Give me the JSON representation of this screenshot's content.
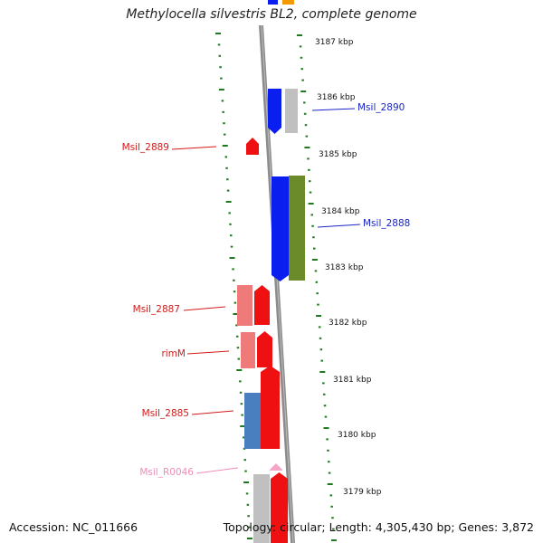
{
  "title": "Methylocella silvestris BL2, complete genome",
  "footer": {
    "accession": "Accession: NC_011666",
    "topology": "Topology: circular; Length: 4,305,430 bp; Genes: 3,872"
  },
  "colors": {
    "backbone": "#8c8c8c",
    "ticks": "#1f7a1f",
    "blue_gene": "#0a1ef0",
    "grey_gene": "#c0c0c0",
    "olive_gene": "#6b8a2a",
    "red_gene": "#ef1111",
    "salmon_gene": "#ee7a7a",
    "steel_gene": "#4a7fbf",
    "pink_gene": "#f5a6c8",
    "orange_gene": "#f29a00"
  },
  "positions_kbp": [
    "3187 kbp",
    "3186 kbp",
    "3185 kbp",
    "3184 kbp",
    "3183 kbp",
    "3182 kbp",
    "3181 kbp",
    "3180 kbp",
    "3179 kbp"
  ],
  "gene_labels": [
    {
      "text": "Msil_2890",
      "color": "#1a24c8"
    },
    {
      "text": "Msil_2889",
      "color": "#d41a1a"
    },
    {
      "text": "Msil_2888",
      "color": "#1a24c8"
    },
    {
      "text": "Msil_2887",
      "color": "#d41a1a"
    },
    {
      "text": "rimM",
      "color": "#d41a1a"
    },
    {
      "text": "Msil_2885",
      "color": "#d41a1a"
    },
    {
      "text": "Msil_R0046",
      "color": "#f08cb8"
    }
  ]
}
